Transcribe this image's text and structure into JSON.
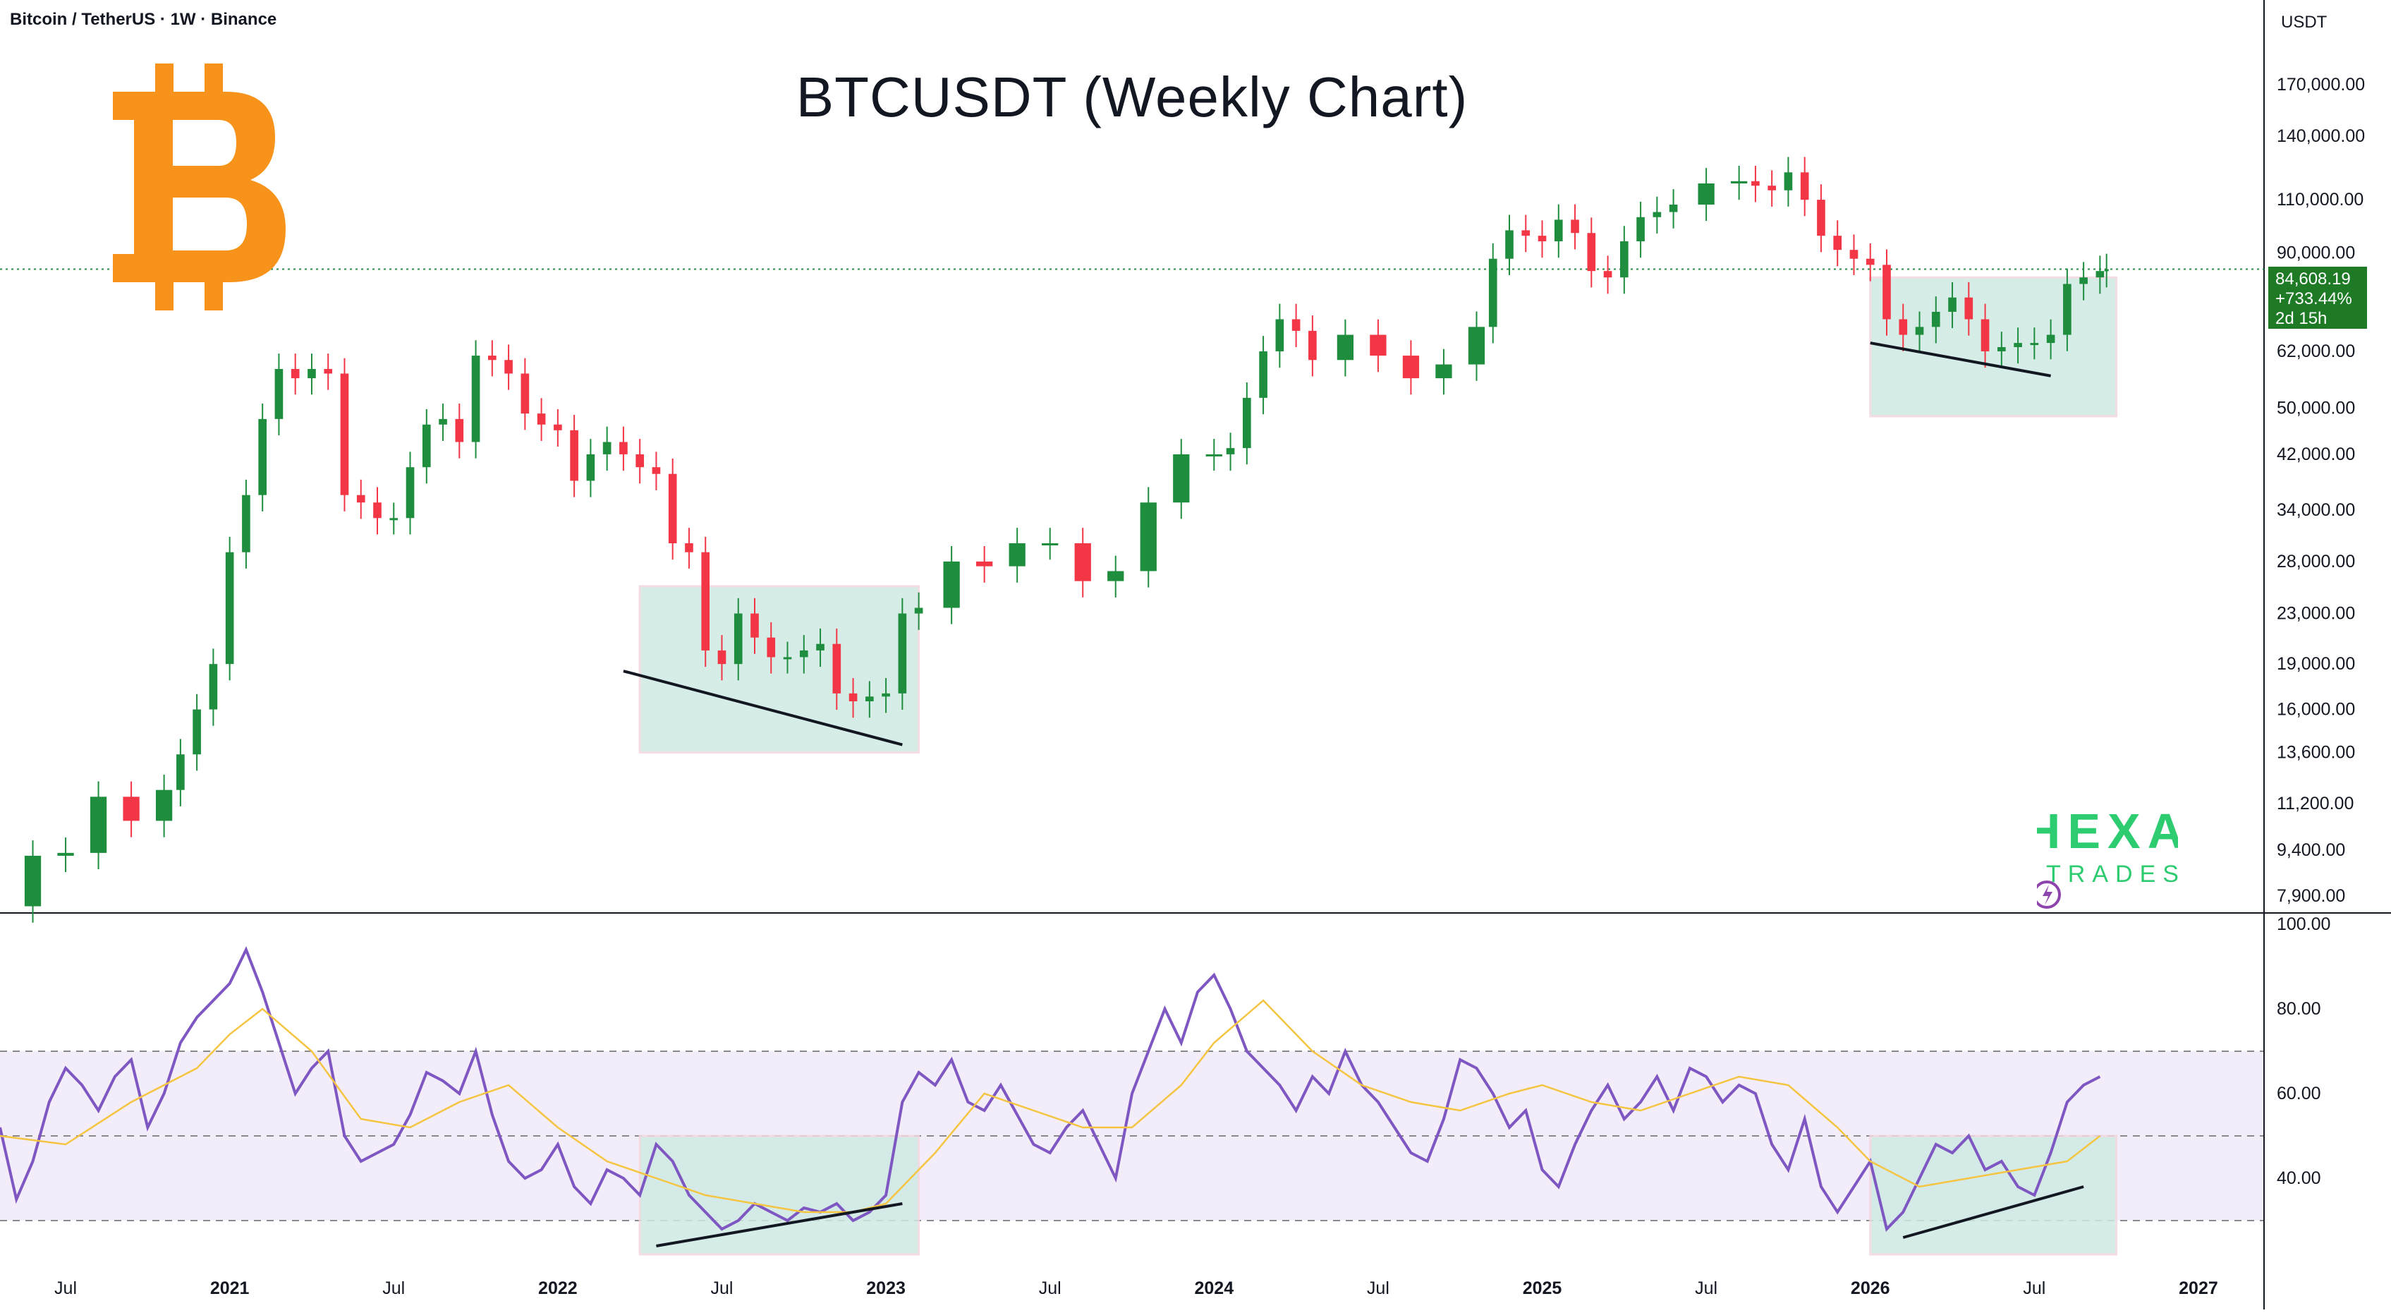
{
  "header": {
    "symbol_line": "Bitcoin / TetherUS · 1W · Binance",
    "currency": "USDT"
  },
  "title": "BTCUSDT (Weekly Chart)",
  "watermark": {
    "word1": "HEXA",
    "word2": "TRADES",
    "color": "#2ecc71"
  },
  "price_badge": {
    "price": "84,608.19",
    "change": "+733.44%",
    "countdown": "2d 15h",
    "color": "#1e7a25"
  },
  "colors": {
    "up": "#1e8e3e",
    "down": "#f23645",
    "rsi": "#7e57c2",
    "rsi_ma": "#f5c542",
    "box": "#cfeae3",
    "logo": "#f7931a"
  },
  "chart_data": [
    {
      "type": "line",
      "name": "price",
      "scale": "log",
      "y_ticks": [
        "170,000.00",
        "140,000.00",
        "110,000.00",
        "90,000.00",
        "62,000.00",
        "50,000.00",
        "42,000.00",
        "34,000.00",
        "28,000.00",
        "23,000.00",
        "19,000.00",
        "16,000.00",
        "13,600.00",
        "11,200.00",
        "9,400.00",
        "7,900.00"
      ],
      "y_tick_values": [
        170000,
        140000,
        110000,
        90000,
        62000,
        50000,
        42000,
        34000,
        28000,
        23000,
        19000,
        16000,
        13600,
        11200,
        9400,
        7900
      ],
      "ylim": [
        7900,
        170000
      ],
      "x_ticks": [
        "Jul",
        "2021",
        "Jul",
        "2022",
        "Jul",
        "2023",
        "Jul",
        "2024",
        "Jul",
        "2025",
        "Jul",
        "2026",
        "Jul",
        "2027"
      ],
      "x_tick_values": [
        2020.5,
        2021.0,
        2021.5,
        2022.0,
        2022.5,
        2023.0,
        2023.5,
        2024.0,
        2024.5,
        2025.0,
        2025.5,
        2026.0,
        2026.5,
        2027.0
      ],
      "xlim": [
        2020.3,
        2027.2
      ],
      "series": [
        {
          "x": [
            2020.3,
            2020.4,
            2020.5,
            2020.6,
            2020.7,
            2020.8,
            2020.85,
            2020.9,
            2020.95,
            2021.0,
            2021.05,
            2021.1,
            2021.15,
            2021.2,
            2021.25,
            2021.3,
            2021.35,
            2021.4,
            2021.45,
            2021.5,
            2021.55,
            2021.6,
            2021.65,
            2021.7,
            2021.75,
            2021.8,
            2021.85,
            2021.9,
            2021.95,
            2022.0,
            2022.05,
            2022.1,
            2022.15,
            2022.2,
            2022.25,
            2022.3,
            2022.35,
            2022.4,
            2022.45,
            2022.5,
            2022.55,
            2022.6,
            2022.65,
            2022.7,
            2022.75,
            2022.8,
            2022.85,
            2022.9,
            2022.95,
            2023.0,
            2023.05,
            2023.1,
            2023.2,
            2023.3,
            2023.4,
            2023.5,
            2023.6,
            2023.7,
            2023.8,
            2023.9,
            2024.0,
            2024.05,
            2024.1,
            2024.15,
            2024.2,
            2024.25,
            2024.3,
            2024.4,
            2024.5,
            2024.6,
            2024.7,
            2024.8,
            2024.85,
            2024.9,
            2024.95,
            2025.0,
            2025.05,
            2025.1,
            2025.15,
            2025.2,
            2025.25,
            2025.3,
            2025.35,
            2025.4,
            2025.5,
            2025.6,
            2025.65,
            2025.7,
            2025.75,
            2025.8,
            2025.85,
            2025.9,
            2025.95,
            2026.0,
            2026.05,
            2026.1,
            2026.15,
            2026.2,
            2026.25,
            2026.3,
            2026.35,
            2026.4,
            2026.45,
            2026.5,
            2026.55,
            2026.6,
            2026.65,
            2026.7,
            2026.72
          ],
          "y": [
            7600,
            9200,
            9300,
            11500,
            10500,
            11800,
            13500,
            16000,
            19000,
            29000,
            36000,
            48000,
            58000,
            56000,
            58000,
            57000,
            36000,
            35000,
            33000,
            33000,
            40000,
            47000,
            48000,
            44000,
            61000,
            60000,
            57000,
            49000,
            47000,
            46000,
            38000,
            42000,
            44000,
            42000,
            40000,
            39000,
            30000,
            29000,
            20000,
            19000,
            23000,
            21000,
            19500,
            19500,
            20000,
            20500,
            17000,
            16500,
            16800,
            17000,
            23000,
            23500,
            28000,
            27500,
            30000,
            30000,
            26000,
            27000,
            35000,
            42000,
            42000,
            43000,
            52000,
            62000,
            70000,
            67000,
            60000,
            66000,
            61000,
            56000,
            59000,
            68000,
            88000,
            98000,
            96000,
            94000,
            102000,
            97000,
            84000,
            82000,
            94000,
            103000,
            105000,
            108000,
            117000,
            118000,
            116000,
            114000,
            122000,
            110000,
            96000,
            91000,
            88000,
            86000,
            70000,
            66000,
            68000,
            72000,
            76000,
            70000,
            62000,
            63000,
            64000,
            64000,
            66000,
            80000,
            82000,
            84000,
            84608
          ]
        }
      ]
    },
    {
      "type": "line",
      "name": "rsi",
      "y_ticks": [
        "100.00",
        "80.00",
        "60.00",
        "40.00"
      ],
      "y_tick_values": [
        100,
        80,
        60,
        40
      ],
      "ylim": [
        20,
        100
      ],
      "bands": [
        70,
        50,
        30
      ],
      "xlim": [
        2020.3,
        2027.2
      ],
      "series": [
        {
          "x": [
            2020.3,
            2020.35,
            2020.4,
            2020.45,
            2020.5,
            2020.55,
            2020.6,
            2020.65,
            2020.7,
            2020.75,
            2020.8,
            2020.85,
            2020.9,
            2020.95,
            2021.0,
            2021.05,
            2021.1,
            2021.15,
            2021.2,
            2021.25,
            2021.3,
            2021.35,
            2021.4,
            2021.45,
            2021.5,
            2021.55,
            2021.6,
            2021.65,
            2021.7,
            2021.75,
            2021.8,
            2021.85,
            2021.9,
            2021.95,
            2022.0,
            2022.05,
            2022.1,
            2022.15,
            2022.2,
            2022.25,
            2022.3,
            2022.35,
            2022.4,
            2022.45,
            2022.5,
            2022.55,
            2022.6,
            2022.65,
            2022.7,
            2022.75,
            2022.8,
            2022.85,
            2022.9,
            2022.95,
            2023.0,
            2023.05,
            2023.1,
            2023.15,
            2023.2,
            2023.25,
            2023.3,
            2023.35,
            2023.4,
            2023.45,
            2023.5,
            2023.55,
            2023.6,
            2023.65,
            2023.7,
            2023.75,
            2023.8,
            2023.85,
            2023.9,
            2023.95,
            2024.0,
            2024.05,
            2024.1,
            2024.15,
            2024.2,
            2024.25,
            2024.3,
            2024.35,
            2024.4,
            2024.45,
            2024.5,
            2024.55,
            2024.6,
            2024.65,
            2024.7,
            2024.75,
            2024.8,
            2024.85,
            2024.9,
            2024.95,
            2025.0,
            2025.05,
            2025.1,
            2025.15,
            2025.2,
            2025.25,
            2025.3,
            2025.35,
            2025.4,
            2025.45,
            2025.5,
            2025.55,
            2025.6,
            2025.65,
            2025.7,
            2025.75,
            2025.8,
            2025.85,
            2025.9,
            2025.95,
            2026.0,
            2026.05,
            2026.1,
            2026.15,
            2026.2,
            2026.25,
            2026.3,
            2026.35,
            2026.4,
            2026.45,
            2026.5,
            2026.55,
            2026.6,
            2026.65,
            2026.7
          ],
          "y": [
            52,
            35,
            44,
            58,
            66,
            62,
            56,
            64,
            68,
            52,
            60,
            72,
            78,
            82,
            86,
            94,
            84,
            72,
            60,
            66,
            70,
            50,
            44,
            46,
            48,
            55,
            65,
            63,
            60,
            70,
            55,
            44,
            40,
            42,
            48,
            38,
            34,
            42,
            40,
            36,
            48,
            44,
            36,
            32,
            28,
            30,
            34,
            32,
            30,
            33,
            32,
            34,
            30,
            32,
            36,
            58,
            65,
            62,
            68,
            58,
            56,
            62,
            55,
            48,
            46,
            52,
            56,
            48,
            40,
            60,
            70,
            80,
            72,
            84,
            88,
            80,
            70,
            66,
            62,
            56,
            64,
            60,
            70,
            62,
            58,
            52,
            46,
            44,
            54,
            68,
            66,
            60,
            52,
            56,
            42,
            38,
            48,
            56,
            62,
            54,
            58,
            64,
            56,
            66,
            64,
            58,
            62,
            60,
            48,
            42,
            54,
            38,
            32,
            38,
            44,
            28,
            32,
            40,
            48,
            46,
            50,
            42,
            44,
            38,
            36,
            46,
            58,
            62,
            64
          ]
        },
        {
          "x": [
            2020.3,
            2020.5,
            2020.7,
            2020.9,
            2021.0,
            2021.1,
            2021.25,
            2021.4,
            2021.55,
            2021.7,
            2021.85,
            2022.0,
            2022.15,
            2022.3,
            2022.45,
            2022.6,
            2022.75,
            2022.9,
            2023.0,
            2023.15,
            2023.3,
            2023.45,
            2023.6,
            2023.75,
            2023.9,
            2024.0,
            2024.15,
            2024.3,
            2024.45,
            2024.6,
            2024.75,
            2024.9,
            2025.0,
            2025.15,
            2025.3,
            2025.45,
            2025.6,
            2025.75,
            2025.9,
            2026.0,
            2026.15,
            2026.3,
            2026.45,
            2026.6,
            2026.7
          ],
          "y": [
            50,
            48,
            58,
            66,
            74,
            80,
            70,
            54,
            52,
            58,
            62,
            52,
            44,
            40,
            36,
            34,
            32,
            32,
            34,
            46,
            60,
            56,
            52,
            52,
            62,
            72,
            82,
            70,
            62,
            58,
            56,
            60,
            62,
            58,
            56,
            60,
            64,
            62,
            52,
            44,
            38,
            40,
            42,
            44,
            50
          ]
        }
      ]
    }
  ],
  "boxes": [
    {
      "panel": "price",
      "x0": 2022.25,
      "x1": 2023.1,
      "y0": 13600,
      "y1": 25500
    },
    {
      "panel": "price",
      "x0": 2026.0,
      "x1": 2026.75,
      "y0": 48500,
      "y1": 82000
    },
    {
      "panel": "rsi",
      "x0": 2022.25,
      "x1": 2023.1,
      "y0": 22,
      "y1": 50
    },
    {
      "panel": "rsi",
      "x0": 2026.0,
      "x1": 2026.75,
      "y0": 22,
      "y1": 50
    }
  ],
  "trendlines": [
    {
      "panel": "price",
      "x0": 2022.2,
      "y0": 18500,
      "x1": 2023.05,
      "y1": 14000
    },
    {
      "panel": "price",
      "x0": 2026.0,
      "y0": 64000,
      "x1": 2026.55,
      "y1": 56500
    },
    {
      "panel": "rsi",
      "x0": 2022.3,
      "y0": 24,
      "x1": 2023.05,
      "y1": 34
    },
    {
      "panel": "rsi",
      "x0": 2026.1,
      "y0": 26,
      "x1": 2026.65,
      "y1": 38
    }
  ]
}
